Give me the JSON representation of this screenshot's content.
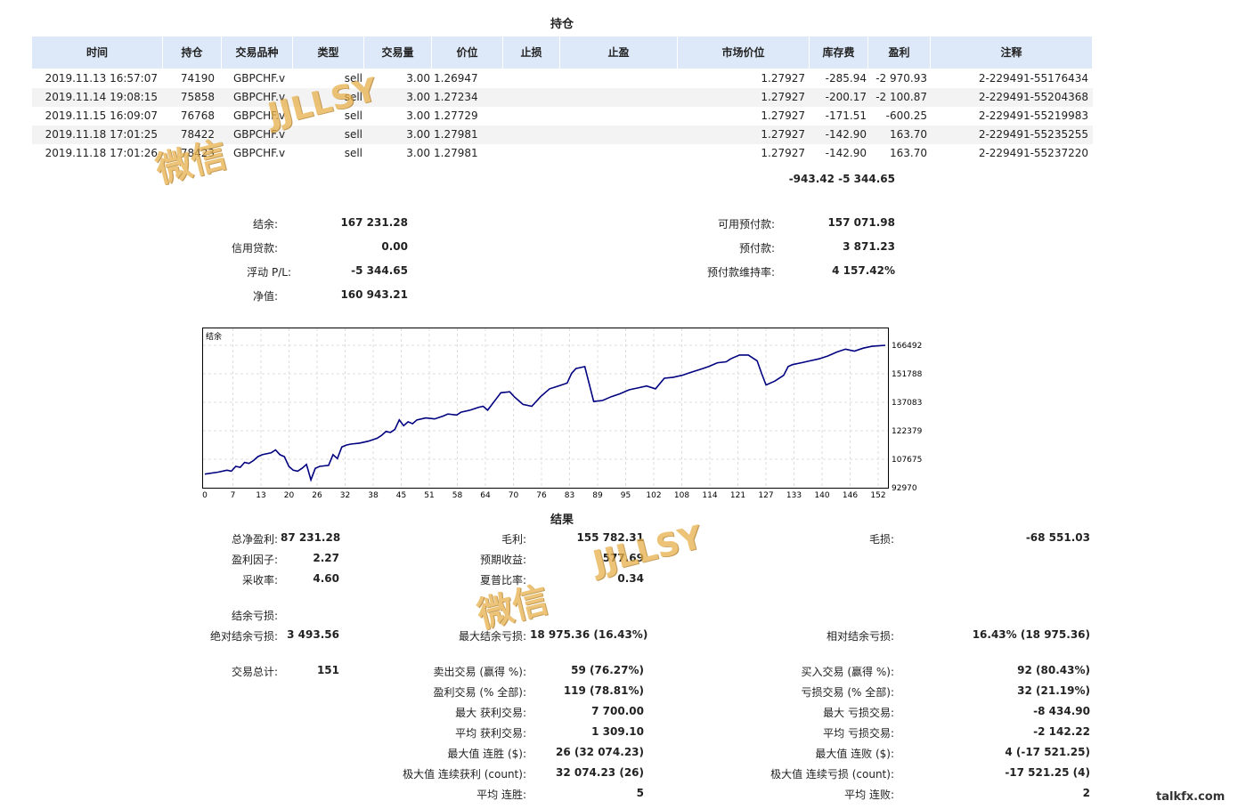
{
  "positions": {
    "title": "持仓",
    "headers": [
      "时间",
      "持仓",
      "交易品种",
      "类型",
      "交易量",
      "价位",
      "止损",
      "止盈",
      "市场价位",
      "库存费",
      "盈利",
      "注释"
    ],
    "rows": [
      [
        "2019.11.13 16:57:07",
        "74190",
        "GBPCHF.v",
        "sell",
        "3.00",
        "1.26947",
        "",
        "",
        "1.27927",
        "-285.94",
        "-2 970.93",
        "2-229491-55176434"
      ],
      [
        "2019.11.14 19:08:15",
        "75858",
        "GBPCHF.v",
        "sell",
        "3.00",
        "1.27234",
        "",
        "",
        "1.27927",
        "-200.17",
        "-2 100.87",
        "2-229491-55204368"
      ],
      [
        "2019.11.15 16:09:07",
        "76768",
        "GBPCHF.v",
        "sell",
        "3.00",
        "1.27729",
        "",
        "",
        "1.27927",
        "-171.51",
        "-600.25",
        "2-229491-55219983"
      ],
      [
        "2019.11.18 17:01:25",
        "78422",
        "GBPCHF.v",
        "sell",
        "3.00",
        "1.27981",
        "",
        "",
        "1.27927",
        "-142.90",
        "163.70",
        "2-229491-55235255"
      ],
      [
        "2019.11.18 17:01:26",
        "78423",
        "GBPCHF.v",
        "sell",
        "3.00",
        "1.27981",
        "",
        "",
        "1.27927",
        "-142.90",
        "163.70",
        "2-229491-55237220"
      ]
    ],
    "total_swap": "-943.42",
    "total_profit": "-5 344.65"
  },
  "account": {
    "balance_label": "结余:",
    "balance": "167 231.28",
    "credit_label": "信用贷款:",
    "credit": "0.00",
    "floating_label": "浮动 P/L:",
    "floating": "-5 344.65",
    "equity_label": "净值:",
    "equity": "160 943.21",
    "free_margin_label": "可用预付款:",
    "free_margin": "157 071.98",
    "margin_label": "预付款:",
    "margin": "3 871.23",
    "margin_level_label": "预付款维持率:",
    "margin_level": "4 157.42%"
  },
  "chart_data": {
    "type": "line",
    "title": "",
    "legend_label": "结余",
    "xlabel": "",
    "ylabel": "",
    "x_ticks": [
      "0",
      "7",
      "13",
      "20",
      "26",
      "32",
      "38",
      "45",
      "51",
      "58",
      "64",
      "70",
      "76",
      "83",
      "89",
      "95",
      "102",
      "108",
      "114",
      "121",
      "127",
      "133",
      "140",
      "146",
      "152"
    ],
    "y_ticks": [
      "166492",
      "151788",
      "137083",
      "122379",
      "107675",
      "92970"
    ],
    "xlim": [
      0,
      154
    ],
    "ylim": [
      92970,
      166492
    ],
    "grid": true,
    "line_color": "#000080",
    "series": [
      {
        "x": [
          0,
          3,
          5,
          6,
          7,
          8,
          9,
          10,
          11,
          12,
          13,
          15,
          16,
          17,
          18,
          19,
          20,
          21,
          22,
          23,
          24,
          25,
          26,
          28,
          29,
          30,
          31,
          32,
          33,
          35,
          37,
          39,
          40,
          41,
          42,
          43,
          44,
          45,
          46,
          47,
          48,
          50,
          52,
          54,
          55,
          57,
          58,
          60,
          62,
          63,
          64,
          66,
          67,
          69,
          70,
          71,
          72,
          74,
          76,
          78,
          80,
          82,
          83,
          84,
          86,
          88,
          90,
          92,
          94,
          96,
          98,
          100,
          102,
          104,
          106,
          108,
          110,
          112,
          114,
          116,
          118,
          119,
          121,
          123,
          125,
          126,
          127,
          129,
          131,
          132,
          133,
          135,
          137,
          139,
          141,
          143,
          145,
          147,
          149,
          151,
          154
        ],
        "values": [
          100000,
          101000,
          102000,
          101500,
          104000,
          103500,
          106000,
          105500,
          107000,
          109000,
          110000,
          111000,
          112500,
          110000,
          109000,
          104000,
          102000,
          101500,
          103000,
          105000,
          97000,
          103000,
          104000,
          104500,
          110000,
          108000,
          114000,
          115000,
          115500,
          116000,
          117000,
          118500,
          120000,
          122000,
          121500,
          123000,
          128000,
          125000,
          127000,
          126000,
          128000,
          129000,
          128500,
          130000,
          131000,
          130500,
          132000,
          133000,
          134500,
          135000,
          133000,
          139000,
          142000,
          142500,
          140000,
          138000,
          136000,
          135000,
          140000,
          144000,
          145500,
          147000,
          152000,
          154500,
          155500,
          137500,
          138000,
          140000,
          141500,
          143500,
          144500,
          145500,
          144000,
          149500,
          150000,
          151000,
          152500,
          154000,
          155500,
          157500,
          158000,
          159500,
          161500,
          161500,
          158500,
          152000,
          146000,
          148000,
          151000,
          155500,
          156500,
          157500,
          158500,
          159500,
          161000,
          163000,
          164500,
          163500,
          165000,
          166000,
          166492
        ]
      }
    ]
  },
  "results": {
    "title": "结果",
    "rows1": [
      [
        [
          "总净盈利:",
          "87 231.28"
        ],
        [
          "毛利:",
          "155 782.31"
        ],
        [
          "毛损:",
          "-68 551.03"
        ]
      ],
      [
        [
          "盈利因子:",
          "2.27"
        ],
        [
          "预期收益:",
          "577.69"
        ],
        null
      ],
      [
        [
          "采收率:",
          "4.60"
        ],
        [
          "夏普比率:",
          "0.34"
        ],
        null
      ]
    ],
    "drawdown_label": "结余亏损:",
    "drawdown_row": [
      [
        "绝对结余亏损:",
        "3 493.56"
      ],
      [
        "最大结余亏损:",
        "18 975.36 (16.43%)"
      ],
      [
        "相对结余亏损:",
        "16.43% (18 975.36)"
      ]
    ],
    "trades_rows": [
      [
        [
          "交易总计:",
          "151"
        ],
        [
          "卖出交易 (赢得 %):",
          "59 (76.27%)"
        ],
        [
          "买入交易 (赢得 %):",
          "92 (80.43%)"
        ]
      ],
      [
        null,
        [
          "盈利交易 (% 全部):",
          "119 (78.81%)"
        ],
        [
          "亏损交易 (% 全部):",
          "32 (21.19%)"
        ]
      ],
      [
        null,
        [
          "最大 获利交易:",
          "7 700.00"
        ],
        [
          "最大 亏损交易:",
          "-8 434.90"
        ]
      ],
      [
        null,
        [
          "平均 获利交易:",
          "1 309.10"
        ],
        [
          "平均 亏损交易:",
          "-2 142.22"
        ]
      ],
      [
        null,
        [
          "最大值 连胜 ($):",
          "26 (32 074.23)"
        ],
        [
          "最大值 连败 ($):",
          "4 (-17 521.25)"
        ]
      ],
      [
        null,
        [
          "极大值 连续获利 (count):",
          "32 074.23 (26)"
        ],
        [
          "极大值 连续亏损 (count):",
          "-17 521.25 (4)"
        ]
      ],
      [
        null,
        [
          "平均 连胜:",
          "5"
        ],
        [
          "平均 连败:",
          "2"
        ]
      ]
    ]
  },
  "watermarks": [
    "微信",
    "JJLLSY"
  ],
  "site_mark": "talkfx.com"
}
